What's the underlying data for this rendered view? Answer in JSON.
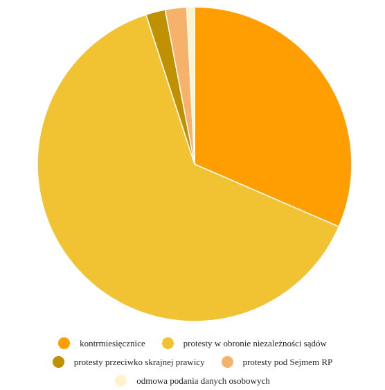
{
  "chart_data": {
    "type": "pie",
    "title": "",
    "slices": [
      {
        "label": "kontrmiesięcznice",
        "value": 31.5,
        "color": "#FF9E01"
      },
      {
        "label": "protesty w obronie niezależności sądów",
        "value": 63.5,
        "color": "#F1C232"
      },
      {
        "label": "protesty przeciwko skrajnej prawicy",
        "value": 2.0,
        "color": "#BF9000"
      },
      {
        "label": "protesty pod Sejmem RP",
        "value": 2.2,
        "color": "#F6B26B"
      },
      {
        "label": "odmowa podania danych osobowych",
        "value": 0.8,
        "color": "#FFF2CC"
      }
    ],
    "start_angle_deg": 0,
    "direction": "clockwise",
    "legend_position": "bottom"
  },
  "legend": {
    "rows": [
      [
        0,
        1
      ],
      [
        2,
        3
      ],
      [
        4
      ]
    ]
  }
}
